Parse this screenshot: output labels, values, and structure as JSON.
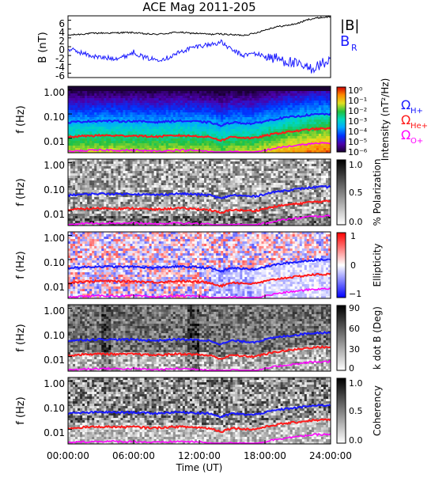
{
  "title": "ACE Mag 2011-205",
  "colors": {
    "bmag": "#000000",
    "br": "#1a1aff",
    "h": "#1a1aff",
    "he": "#ff1a1a",
    "o": "#ff00ff"
  },
  "chart_data": [
    {
      "id": "bfield",
      "type": "line",
      "ylabel": "B (nT)",
      "yticks": [
        "6",
        "4",
        "2",
        "0",
        "-2",
        "-4",
        "-6"
      ],
      "ylim": [
        -7,
        7
      ],
      "xlim": [
        0,
        24
      ],
      "legend": [
        "|B|",
        "B",
        "R"
      ],
      "series": [
        {
          "name": "|B|",
          "color": "#000000",
          "x": [
            0,
            1,
            2,
            3,
            4,
            5,
            6,
            7,
            8,
            9,
            10,
            11,
            12,
            13,
            14,
            15,
            16,
            17,
            18,
            19,
            20,
            21,
            22,
            23,
            24
          ],
          "y": [
            2.6,
            2.8,
            3.0,
            3.1,
            3.1,
            3.2,
            3.2,
            2.9,
            2.8,
            3.0,
            3.3,
            3.1,
            3.0,
            2.8,
            2.9,
            2.7,
            2.6,
            3.0,
            3.8,
            4.5,
            4.8,
            5.3,
            6.2,
            6.6,
            6.8
          ]
        },
        {
          "name": "B_R",
          "color": "#1a1aff",
          "x": [
            0,
            1,
            2,
            3,
            4,
            5,
            6,
            7,
            8,
            9,
            10,
            11,
            12,
            13,
            14,
            15,
            16,
            17,
            18,
            19,
            20,
            21,
            22,
            23,
            24
          ],
          "y": [
            -0.5,
            -1.2,
            -2.0,
            -2.5,
            -2.6,
            -2.4,
            -1.2,
            -2.5,
            -2.9,
            -2.6,
            -1.5,
            -0.5,
            0.2,
            0.5,
            1.0,
            -0.8,
            -2.0,
            -1.5,
            -2.2,
            -2.7,
            -3.2,
            -4.2,
            -5.0,
            -4.2,
            -3.0
          ]
        }
      ]
    },
    {
      "id": "intensity",
      "type": "heatmap",
      "ylabel": "f (Hz)",
      "yticks": [
        "1.00",
        "0.10",
        "0.01"
      ],
      "cbar_label": "Intensity (nT²/Hz)",
      "cbar_ticks": [
        "10⁰",
        "10⁻¹",
        "10⁻²",
        "10⁻³",
        "10⁻⁴",
        "10⁻⁵",
        "10⁻⁶"
      ],
      "cbar_range": [
        -6.5,
        0
      ]
    },
    {
      "id": "polarization",
      "type": "heatmap",
      "ylabel": "f (Hz)",
      "yticks": [
        "1.00",
        "0.10",
        "0.01"
      ],
      "cbar_label": "% Polarization",
      "cbar_ticks": [
        "1.0",
        "0.5",
        "0.0"
      ],
      "cbar_range": [
        0,
        1
      ]
    },
    {
      "id": "ellipticity",
      "type": "heatmap",
      "ylabel": "f (Hz)",
      "yticks": [
        "1.00",
        "0.10",
        "0.01"
      ],
      "cbar_label": "Ellipticity",
      "cbar_ticks": [
        "1",
        "0",
        "−1"
      ],
      "cbar_range": [
        -1,
        1
      ]
    },
    {
      "id": "kdotb",
      "type": "heatmap",
      "ylabel": "f (Hz)",
      "yticks": [
        "1.00",
        "0.10",
        "0.01"
      ],
      "cbar_label": "k dot B (Deg)",
      "cbar_ticks": [
        "90",
        "60",
        "30",
        "0"
      ],
      "cbar_range": [
        0,
        90
      ]
    },
    {
      "id": "coherency",
      "type": "heatmap",
      "ylabel": "f (Hz)",
      "yticks": [
        "1.00",
        "0.10",
        "0.01"
      ],
      "cbar_label": "Coherency",
      "cbar_ticks": [
        "1.0",
        "0.5",
        "0.0"
      ],
      "cbar_range": [
        0,
        1
      ]
    }
  ],
  "gyro_lines": {
    "x": [
      0,
      1,
      2,
      3,
      4,
      5,
      6,
      7,
      8,
      9,
      10,
      11,
      12,
      13,
      14,
      15,
      16,
      17,
      18,
      19,
      20,
      21,
      22,
      23,
      24
    ],
    "H+": [
      0.045,
      0.048,
      0.05,
      0.052,
      0.051,
      0.05,
      0.051,
      0.048,
      0.046,
      0.049,
      0.052,
      0.05,
      0.048,
      0.045,
      0.032,
      0.046,
      0.042,
      0.04,
      0.05,
      0.062,
      0.072,
      0.08,
      0.092,
      0.098,
      0.1
    ],
    "He+": [
      0.011,
      0.012,
      0.0125,
      0.013,
      0.0128,
      0.0125,
      0.0128,
      0.012,
      0.0115,
      0.0122,
      0.013,
      0.0125,
      0.012,
      0.011,
      0.008,
      0.0115,
      0.0105,
      0.01,
      0.0125,
      0.0155,
      0.018,
      0.02,
      0.023,
      0.0245,
      0.025
    ],
    "O+": [
      0.0028,
      0.003,
      0.0031,
      0.0032,
      0.0032,
      0.0031,
      0.0032,
      0.003,
      0.0029,
      0.003,
      0.0032,
      0.0031,
      0.003,
      0.0028,
      0.002,
      0.0029,
      0.0026,
      0.0025,
      0.0031,
      0.0039,
      0.0045,
      0.005,
      0.0058,
      0.0061,
      0.0063
    ]
  },
  "gyro_legend": [
    "Ω",
    "H+",
    "Ω",
    "He+",
    "Ω",
    "O+"
  ],
  "xaxis": {
    "ticks": [
      "00:00:00",
      "06:00:00",
      "12:00:00",
      "18:00:00",
      "24:00:00"
    ],
    "label": "Time (UT)"
  }
}
